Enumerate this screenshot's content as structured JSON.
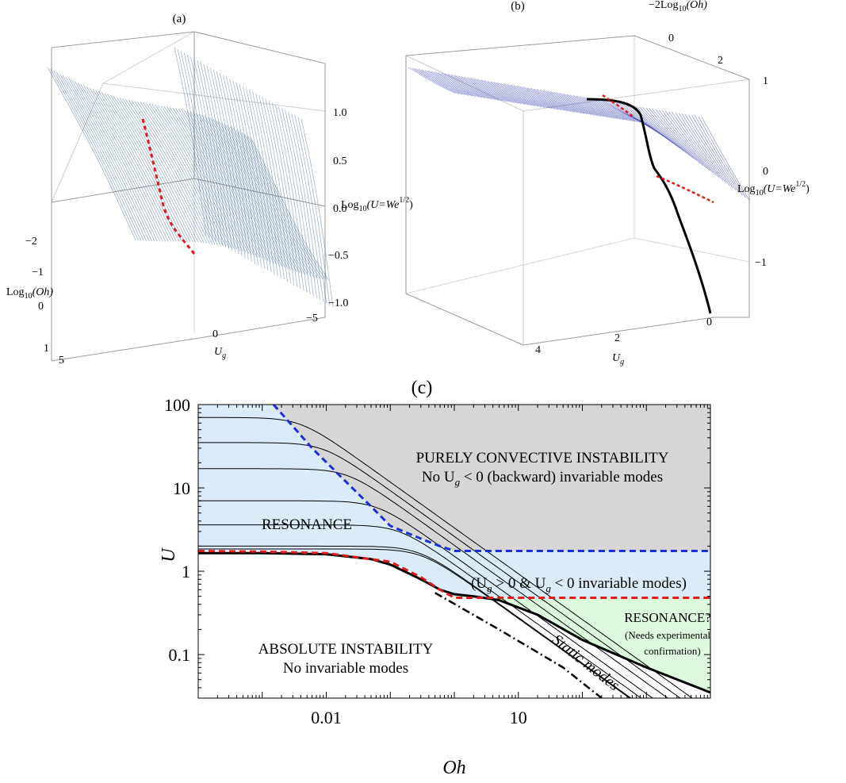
{
  "panels": {
    "a": {
      "label": "(a)",
      "z_axis_label_base": "Log",
      "z_axis_label_sub": "10",
      "z_axis_label_rest": "(U=We",
      "z_axis_label_sup": "1/2",
      "z_axis_label_close": ")",
      "oh_axis_label_base": "Log",
      "oh_axis_label_sub": "10",
      "oh_axis_label_rest": "(Oh)",
      "ug_axis_label": "U",
      "ug_axis_label_sub": "g",
      "z_ticks": [
        "1.0",
        "0.5",
        "0.0",
        "−0.5",
        "−1.0"
      ],
      "oh_ticks": [
        "−2",
        "−1",
        "0",
        "1"
      ],
      "ug_ticks": [
        "5",
        "0",
        "−5"
      ]
    },
    "b": {
      "label": "(b)",
      "oh_axis_label": "−2Log",
      "oh_axis_label_sub": "10",
      "oh_axis_label_rest": "(Oh)",
      "oh_ticks": [
        "0",
        "2"
      ],
      "z_axis_label_base": "Log",
      "z_axis_label_sub": "10",
      "z_axis_label_rest": "(U=We",
      "z_axis_label_sup": "1/2",
      "z_axis_label_close": ")",
      "z_ticks": [
        "1",
        "0",
        "−1"
      ],
      "ug_axis_label": "U",
      "ug_axis_label_sub": "g",
      "ug_ticks": [
        "4",
        "2",
        "0"
      ]
    },
    "c": {
      "label": "(c)",
      "x_label": "Oh",
      "y_label": "U",
      "region_labels": {
        "convective_title": "PURELY CONVECTIVE INSTABILITY",
        "convective_sub_pre": "No U",
        "convective_sub_sub": "g",
        "convective_sub_post": " < 0 (backward) invariable modes",
        "resonance": "RESONANCE",
        "mixed_pre": "(U",
        "mixed_sub1": "g",
        "mixed_mid": " > 0 & U",
        "mixed_sub2": "g",
        "mixed_post": " < 0 invariable modes)",
        "resonance_q": "RESONANCE?",
        "resonance_q_sub1": "(Needs experimental",
        "resonance_q_sub2": "confirmation)",
        "absolute_title": "ABSOLUTE INSTABILITY",
        "absolute_sub": "No invariable modes",
        "static": "Static modes"
      },
      "colors": {
        "convective_region": "#d6d6d6",
        "resonance_region": "#dcebfa",
        "resonance_q_region": "#dcfadc",
        "blue_dashed": "#1a2fd6",
        "red_dashed": "#e01b1b",
        "mesh": "#3a4fa8"
      }
    }
  },
  "chart_data": [
    {
      "type": "surface3d",
      "panel": "(a)",
      "x_axis": "Log10(Oh)",
      "x_range": [
        -2,
        1
      ],
      "y_axis": "Ug",
      "y_range": [
        5,
        -5
      ],
      "z_axis": "Log10(U=We^1/2)",
      "z_range": [
        -1.0,
        1.0
      ],
      "overlay": "red dashed curve"
    },
    {
      "type": "surface3d",
      "panel": "(b)",
      "x_axis": "-2Log10(Oh)",
      "x_ticks": [
        0,
        2
      ],
      "y_axis": "Ug",
      "y_ticks": [
        4,
        2,
        0
      ],
      "z_axis": "Log10(U=We^1/2)",
      "z_range": [
        -1,
        1
      ],
      "overlays": [
        "black solid curve",
        "red dashed curve"
      ]
    },
    {
      "type": "line",
      "panel": "(c)",
      "xscale": "log",
      "yscale": "log",
      "xlabel": "Oh",
      "ylabel": "U",
      "xlim": [
        0.0001,
        10000
      ],
      "ylim": [
        0.03,
        100
      ],
      "xticks": [
        0.01,
        10
      ],
      "yticks": [
        0.1,
        1,
        10,
        100
      ],
      "thin_curve_plateaus": [
        70,
        35,
        17,
        7,
        3.6,
        2.0,
        1.85
      ],
      "series": [
        {
          "style": "blue-dashed",
          "x": [
            0.0015,
            0.003,
            0.006,
            0.02,
            0.05,
            0.1,
            0.2,
            0.5,
            1,
            10000
          ],
          "y": [
            100,
            55,
            30,
            12,
            6,
            3.5,
            2.8,
            2.1,
            1.75,
            1.75
          ]
        },
        {
          "style": "black-thick",
          "x": [
            0.0001,
            0.001,
            0.01,
            0.05,
            0.1,
            0.3,
            0.6,
            1,
            2,
            5,
            20,
            100,
            1000,
            10000
          ],
          "y": [
            1.65,
            1.65,
            1.6,
            1.4,
            1.2,
            0.8,
            0.6,
            0.53,
            0.5,
            0.45,
            0.3,
            0.15,
            0.07,
            0.035
          ]
        },
        {
          "style": "red-dashed",
          "x": [
            0.0001,
            0.001,
            0.01,
            0.1,
            0.3,
            0.6,
            1,
            10000
          ],
          "y": [
            1.75,
            1.72,
            1.65,
            1.3,
            0.85,
            0.6,
            0.48,
            0.48
          ]
        },
        {
          "style": "black-dashdot",
          "x": [
            0.5,
            5,
            50,
            200
          ],
          "y": [
            0.55,
            0.2,
            0.07,
            0.03
          ]
        }
      ]
    }
  ]
}
